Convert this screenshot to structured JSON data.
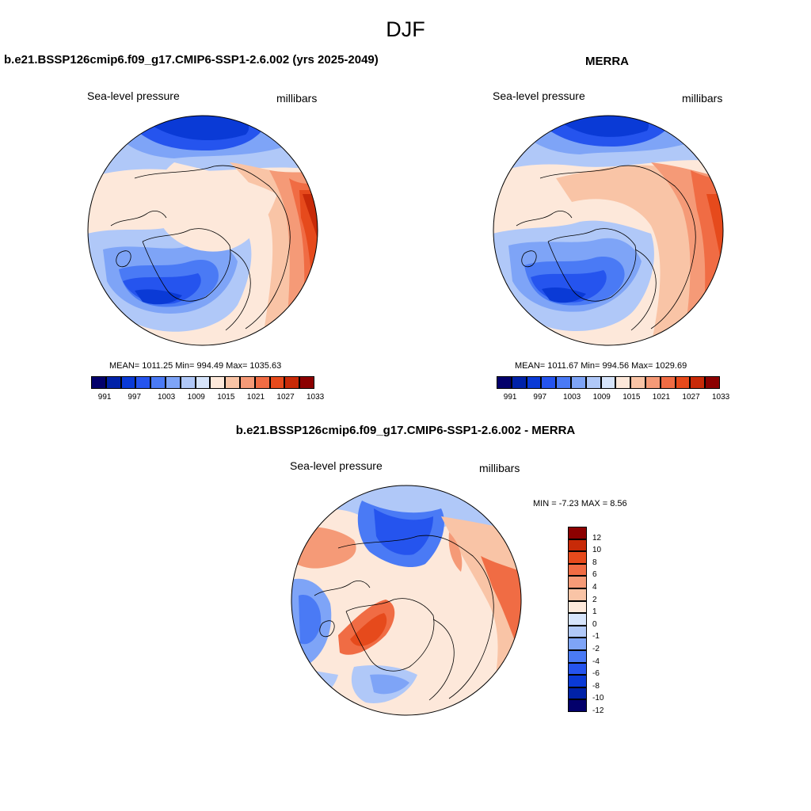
{
  "title": "DJF",
  "colors": {
    "scale": [
      "#03006b",
      "#0022a8",
      "#0a3ad6",
      "#2554ee",
      "#4a7af5",
      "#7ea4f7",
      "#b0c8f8",
      "#d6e4fb",
      "#fde8da",
      "#f9c4a6",
      "#f59a77",
      "#f06c44",
      "#e64a1c",
      "#c82a08",
      "#8c0000"
    ]
  },
  "panels": {
    "model": {
      "title": "b.e21.BSSP126cmip6.f09_g17.CMIP6-SSP1-2.6.002 (yrs 2025-2049)",
      "variable": "Sea-level pressure",
      "units": "millibars",
      "stats": "MEAN= 1011.25  Min= 994.49  Max= 1035.63",
      "colorbar_ticks": [
        "991",
        "997",
        "1003",
        "1009",
        "1015",
        "1021",
        "1027",
        "1033"
      ]
    },
    "obs": {
      "title": "MERRA",
      "variable": "Sea-level pressure",
      "units": "millibars",
      "stats": "MEAN= 1011.67  Min= 994.56  Max= 1029.69",
      "colorbar_ticks": [
        "991",
        "997",
        "1003",
        "1009",
        "1015",
        "1021",
        "1027",
        "1033"
      ]
    },
    "diff": {
      "title": "b.e21.BSSP126cmip6.f09_g17.CMIP6-SSP1-2.6.002 - MERRA",
      "variable": "Sea-level pressure",
      "units": "millibars",
      "stats": "MIN =  -7.23 MAX =   8.56",
      "colorbar_ticks": [
        "12",
        "10",
        "8",
        "6",
        "4",
        "2",
        "1",
        "0",
        "-1",
        "-2",
        "-4",
        "-6",
        "-8",
        "-10",
        "-12"
      ]
    }
  }
}
